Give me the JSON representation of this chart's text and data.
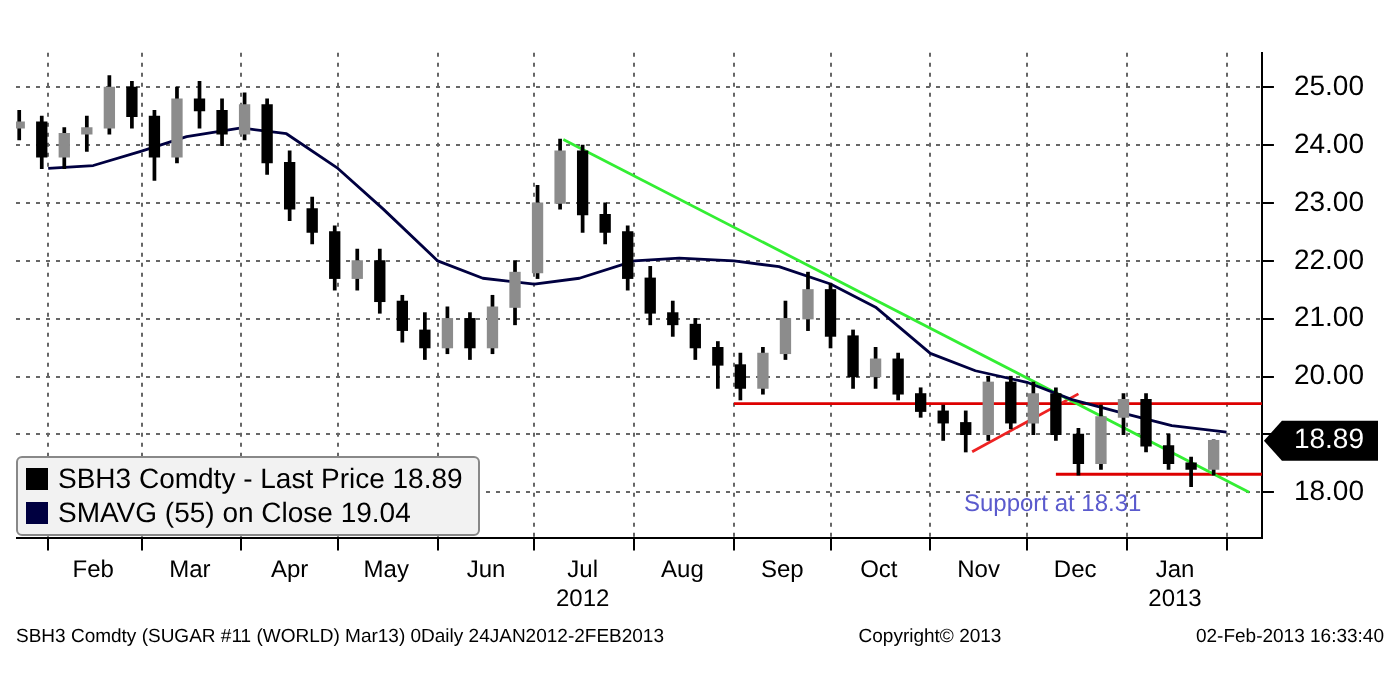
{
  "chart_data": {
    "type": "candlestick",
    "xlim": [
      "2012-01-22",
      "2013-02-12"
    ],
    "xticks": [
      {
        "value": "2012-02-01",
        "label": null
      },
      {
        "value": "2012-02-15",
        "label": "Feb"
      },
      {
        "value": "2012-03-01",
        "label": null
      },
      {
        "value": "2012-03-16",
        "label": "Mar"
      },
      {
        "value": "2012-04-01",
        "label": null
      },
      {
        "value": "2012-04-16",
        "label": "Apr"
      },
      {
        "value": "2012-05-01",
        "label": null
      },
      {
        "value": "2012-05-16",
        "label": "May"
      },
      {
        "value": "2012-06-01",
        "label": null
      },
      {
        "value": "2012-06-16",
        "label": "Jun"
      },
      {
        "value": "2012-07-01",
        "label": null
      },
      {
        "value": "2012-07-16",
        "label": "Jul\n2012"
      },
      {
        "value": "2012-08-01",
        "label": null
      },
      {
        "value": "2012-08-16",
        "label": "Aug"
      },
      {
        "value": "2012-09-01",
        "label": null
      },
      {
        "value": "2012-09-16",
        "label": "Sep"
      },
      {
        "value": "2012-10-01",
        "label": null
      },
      {
        "value": "2012-10-16",
        "label": "Oct"
      },
      {
        "value": "2012-11-01",
        "label": null
      },
      {
        "value": "2012-11-16",
        "label": "Nov"
      },
      {
        "value": "2012-12-01",
        "label": null
      },
      {
        "value": "2012-12-16",
        "label": "Dec"
      },
      {
        "value": "2013-01-01",
        "label": null
      },
      {
        "value": "2013-01-16",
        "label": "Jan\n2013"
      },
      {
        "value": "2013-02-01",
        "label": null
      }
    ],
    "ylim": [
      17.2,
      25.6
    ],
    "yticks": [
      {
        "value": 18,
        "label": "18.00"
      },
      {
        "value": 19,
        "label": null
      },
      {
        "value": 20,
        "label": "20.00"
      },
      {
        "value": 21,
        "label": "21.00"
      },
      {
        "value": 22,
        "label": "22.00"
      },
      {
        "value": 23,
        "label": "23.00"
      },
      {
        "value": 24,
        "label": "24.00"
      },
      {
        "value": 25,
        "label": "25.00"
      },
      {
        "value": 18.89,
        "label": "18.89"
      }
    ],
    "grid": true,
    "legend": "bottom left",
    "series": [
      {
        "name": "SBH3 Comdty - Last Price 18.89",
        "color": "#000000",
        "colors": [
          "#8c8c8c",
          "#000000",
          "#8c8c8c",
          "#8c8c8c",
          "#8c8c8c",
          "#000000",
          "#000000",
          "#8c8c8c",
          "#000000",
          "#000000",
          "#8c8c8c",
          "#000000",
          "#000000",
          "#000000",
          "#000000",
          "#8c8c8c",
          "#000000",
          "#000000",
          "#000000",
          "#8c8c8c",
          "#000000",
          "#8c8c8c",
          "#8c8c8c",
          "#8c8c8c",
          "#8c8c8c",
          "#000000",
          "#000000",
          "#000000",
          "#000000",
          "#000000",
          "#000000",
          "#000000",
          "#000000",
          "#8c8c8c",
          "#8c8c8c",
          "#8c8c8c",
          "#000000",
          "#000000",
          "#8c8c8c",
          "#000000",
          "#000000",
          "#000000",
          "#000000",
          "#8c8c8c",
          "#000000",
          "#8c8c8c",
          "#000000",
          "#000000",
          "#8c8c8c",
          "#8c8c8c",
          "#000000",
          "#000000",
          "#000000",
          "#8c8c8c"
        ],
        "type": "candlestick",
        "x": [
          "2012-01-23",
          "2012-01-30",
          "2012-02-06",
          "2012-02-13",
          "2012-02-20",
          "2012-02-27",
          "2012-03-05",
          "2012-03-12",
          "2012-03-19",
          "2012-03-26",
          "2012-04-02",
          "2012-04-09",
          "2012-04-16",
          "2012-04-23",
          "2012-04-30",
          "2012-05-07",
          "2012-05-14",
          "2012-05-21",
          "2012-05-28",
          "2012-06-04",
          "2012-06-11",
          "2012-06-18",
          "2012-06-25",
          "2012-07-02",
          "2012-07-09",
          "2012-07-16",
          "2012-07-23",
          "2012-07-30",
          "2012-08-06",
          "2012-08-13",
          "2012-08-20",
          "2012-08-27",
          "2012-09-03",
          "2012-09-10",
          "2012-09-17",
          "2012-09-24",
          "2012-10-01",
          "2012-10-08",
          "2012-10-15",
          "2012-10-22",
          "2012-10-29",
          "2012-11-05",
          "2012-11-12",
          "2012-11-19",
          "2012-11-26",
          "2012-12-03",
          "2012-12-10",
          "2012-12-17",
          "2012-12-24",
          "2012-12-31",
          "2013-01-07",
          "2013-01-14",
          "2013-01-21",
          "2013-01-28"
        ],
        "ohlc": [
          [
            24.3,
            24.6,
            24.1,
            24.4
          ],
          [
            24.4,
            24.5,
            23.6,
            23.8
          ],
          [
            23.8,
            24.3,
            23.6,
            24.2
          ],
          [
            24.2,
            24.5,
            23.9,
            24.3
          ],
          [
            24.3,
            25.2,
            24.2,
            25.0
          ],
          [
            25.0,
            25.1,
            24.3,
            24.5
          ],
          [
            24.5,
            24.6,
            23.4,
            23.8
          ],
          [
            23.8,
            25.0,
            23.7,
            24.8
          ],
          [
            24.8,
            25.1,
            24.3,
            24.6
          ],
          [
            24.6,
            24.8,
            24.0,
            24.2
          ],
          [
            24.2,
            24.9,
            24.1,
            24.7
          ],
          [
            24.7,
            24.8,
            23.5,
            23.7
          ],
          [
            23.7,
            23.9,
            22.7,
            22.9
          ],
          [
            22.9,
            23.1,
            22.3,
            22.5
          ],
          [
            22.5,
            22.6,
            21.5,
            21.7
          ],
          [
            21.7,
            22.2,
            21.5,
            22.0
          ],
          [
            22.0,
            22.2,
            21.1,
            21.3
          ],
          [
            21.3,
            21.4,
            20.6,
            20.8
          ],
          [
            20.8,
            21.1,
            20.3,
            20.5
          ],
          [
            20.5,
            21.2,
            20.4,
            21.0
          ],
          [
            21.0,
            21.1,
            20.3,
            20.5
          ],
          [
            20.5,
            21.4,
            20.4,
            21.2
          ],
          [
            21.2,
            22.0,
            20.9,
            21.8
          ],
          [
            21.8,
            23.3,
            21.7,
            23.0
          ],
          [
            23.0,
            24.1,
            22.9,
            23.9
          ],
          [
            23.9,
            24.0,
            22.5,
            22.8
          ],
          [
            22.8,
            23.0,
            22.3,
            22.5
          ],
          [
            22.5,
            22.6,
            21.5,
            21.7
          ],
          [
            21.7,
            21.9,
            20.9,
            21.1
          ],
          [
            21.1,
            21.3,
            20.7,
            20.9
          ],
          [
            20.9,
            21.0,
            20.3,
            20.5
          ],
          [
            20.5,
            20.6,
            19.8,
            20.2
          ],
          [
            20.2,
            20.4,
            19.6,
            19.8
          ],
          [
            19.8,
            20.5,
            19.7,
            20.4
          ],
          [
            20.4,
            21.3,
            20.3,
            21.0
          ],
          [
            21.0,
            21.8,
            20.8,
            21.5
          ],
          [
            21.5,
            21.6,
            20.5,
            20.7
          ],
          [
            20.7,
            20.8,
            19.8,
            20.0
          ],
          [
            20.0,
            20.5,
            19.8,
            20.3
          ],
          [
            20.3,
            20.4,
            19.6,
            19.7
          ],
          [
            19.7,
            19.8,
            19.3,
            19.4
          ],
          [
            19.4,
            19.5,
            18.9,
            19.2
          ],
          [
            19.2,
            19.4,
            18.7,
            19.0
          ],
          [
            19.0,
            20.0,
            18.9,
            19.9
          ],
          [
            19.9,
            20.0,
            19.1,
            19.2
          ],
          [
            19.2,
            19.9,
            19.0,
            19.7
          ],
          [
            19.7,
            19.8,
            18.9,
            19.0
          ],
          [
            19.0,
            19.1,
            18.3,
            18.5
          ],
          [
            18.5,
            19.5,
            18.4,
            19.3
          ],
          [
            19.3,
            19.7,
            19.0,
            19.6
          ],
          [
            19.6,
            19.7,
            18.7,
            18.8
          ],
          [
            18.8,
            19.0,
            18.4,
            18.5
          ],
          [
            18.5,
            18.6,
            18.1,
            18.4
          ],
          [
            18.4,
            18.9,
            18.3,
            18.89
          ]
        ]
      },
      {
        "name": "SMAVG (55) on Close 19.04",
        "color": "#000040",
        "type": "line",
        "x": [
          "2012-02-01",
          "2012-02-15",
          "2012-03-01",
          "2012-03-15",
          "2012-04-01",
          "2012-04-15",
          "2012-05-01",
          "2012-05-15",
          "2012-06-01",
          "2012-06-15",
          "2012-07-01",
          "2012-07-15",
          "2012-08-01",
          "2012-08-15",
          "2012-09-01",
          "2012-09-15",
          "2012-10-01",
          "2012-10-15",
          "2012-11-01",
          "2012-11-15",
          "2012-12-01",
          "2012-12-15",
          "2013-01-01",
          "2013-01-15",
          "2013-02-01"
        ],
        "values": [
          23.6,
          23.65,
          23.9,
          24.15,
          24.3,
          24.2,
          23.6,
          22.9,
          22.0,
          21.7,
          21.6,
          21.7,
          22.0,
          22.05,
          22.0,
          21.9,
          21.6,
          21.2,
          20.4,
          20.1,
          19.9,
          19.6,
          19.35,
          19.15,
          19.04
        ]
      },
      {
        "color": "#33ee33",
        "type": "line",
        "x": [
          "2012-07-10",
          "2013-02-08"
        ],
        "values": [
          24.1,
          18.0
        ]
      },
      {
        "color": "#ee2222",
        "type": "line",
        "x": [
          "2012-11-14",
          "2012-12-17"
        ],
        "values": [
          18.7,
          19.7
        ]
      },
      {
        "color": "#dd0000",
        "type": "line",
        "x": [
          "2012-09-01",
          "2013-02-12"
        ],
        "values": [
          19.53,
          19.53
        ]
      },
      {
        "color": "#dd0000",
        "type": "line",
        "x": [
          "2012-12-10",
          "2013-02-12"
        ],
        "values": [
          18.31,
          18.31
        ]
      }
    ],
    "annotations": [
      {
        "text": "Support at 18.31",
        "x": "2012-12-09",
        "y": 18.31
      },
      "SBH3 Comdty (SUGAR #11 (WORLD) Mar13) 0Daily 24JAN2012-2FEB2013",
      "Copyright© 2013",
      "02-Feb-2013 16:33:40"
    ]
  }
}
